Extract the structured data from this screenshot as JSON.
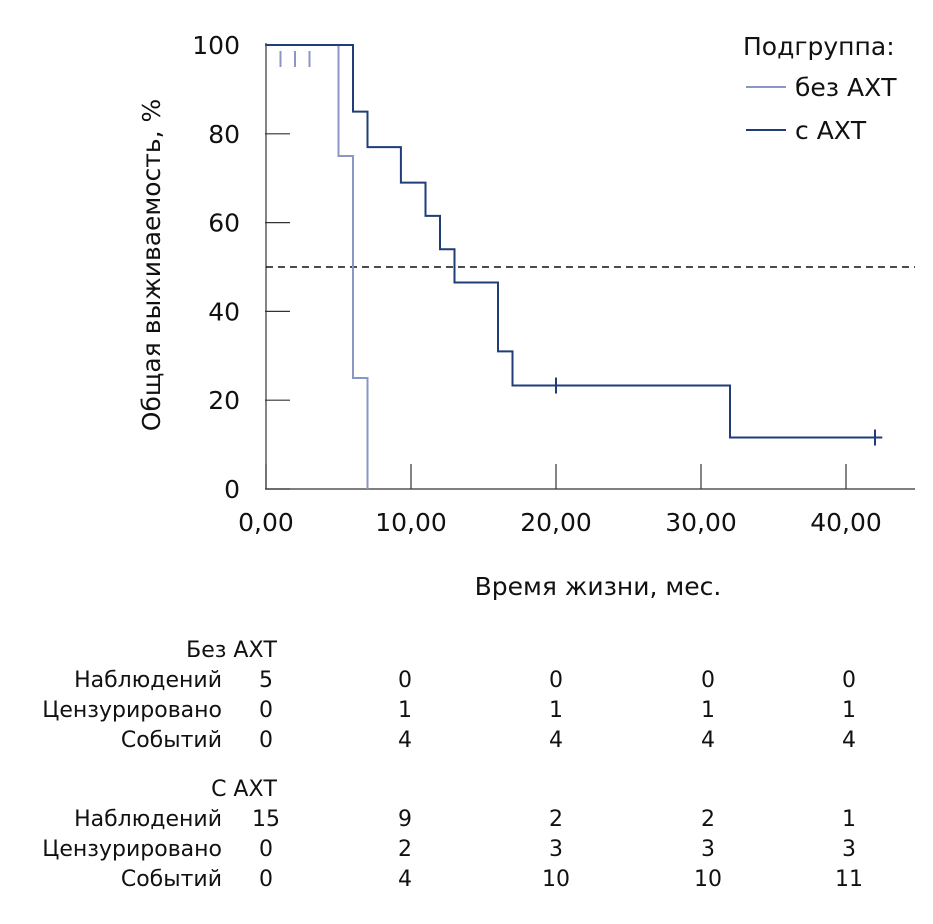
{
  "chart_data": {
    "type": "line",
    "xlabel": "Время жизни, мес.",
    "ylabel": "Общая выживаемость, %",
    "xlim": [
      0,
      45
    ],
    "ylim": [
      0,
      100
    ],
    "x_ticks": [
      0,
      10,
      20,
      30,
      40
    ],
    "x_tick_labels": [
      "0,00",
      "10,00",
      "20,00",
      "30,00",
      "40,00"
    ],
    "y_ticks": [
      0,
      20,
      40,
      60,
      80,
      100
    ],
    "y_tick_labels": [
      "0",
      "20",
      "40",
      "60",
      "80",
      "100"
    ],
    "reference_line": {
      "y": 50,
      "style": "dashed"
    },
    "legend": {
      "title": "Подгруппа:",
      "position": "top-right"
    },
    "series": [
      {
        "name": "без АХТ",
        "color": "#8a97c4",
        "steps": [
          [
            0,
            100
          ],
          [
            5,
            100
          ],
          [
            5,
            75
          ],
          [
            6,
            75
          ],
          [
            6,
            25
          ],
          [
            7,
            25
          ],
          [
            7,
            0
          ]
        ],
        "censor_x": [
          1,
          2,
          3
        ]
      },
      {
        "name": "с АХТ",
        "color": "#1f3d78",
        "steps": [
          [
            0,
            100
          ],
          [
            6,
            100
          ],
          [
            6,
            85
          ],
          [
            7,
            85
          ],
          [
            7,
            77
          ],
          [
            9.3,
            77
          ],
          [
            9.3,
            69
          ],
          [
            11,
            69
          ],
          [
            11,
            61.5
          ],
          [
            12,
            61.5
          ],
          [
            12,
            54
          ],
          [
            13,
            54
          ],
          [
            13,
            46.5
          ],
          [
            16,
            46.5
          ],
          [
            16,
            31
          ],
          [
            17,
            31
          ],
          [
            17,
            23.3
          ],
          [
            32,
            23.3
          ],
          [
            32,
            11.6
          ],
          [
            42.5,
            11.6
          ]
        ],
        "censor": [
          [
            20,
            23.3
          ],
          [
            42,
            11.6
          ]
        ]
      }
    ]
  },
  "risk_table": {
    "groups": [
      {
        "title": "Без АХТ",
        "rows": [
          {
            "label": "Наблюдений",
            "values": [
              "5",
              "0",
              "0",
              "0",
              "0"
            ]
          },
          {
            "label": "Цензурировано",
            "values": [
              "0",
              "1",
              "1",
              "1",
              "1"
            ]
          },
          {
            "label": "Событий",
            "values": [
              "0",
              "4",
              "4",
              "4",
              "4"
            ]
          }
        ]
      },
      {
        "title": "С АХТ",
        "rows": [
          {
            "label": "Наблюдений",
            "values": [
              "15",
              "9",
              "2",
              "2",
              "1"
            ]
          },
          {
            "label": "Цензурировано",
            "values": [
              "0",
              "2",
              "3",
              "3",
              "3"
            ]
          },
          {
            "label": "Событий",
            "values": [
              "0",
              "4",
              "10",
              "10",
              "11"
            ]
          }
        ]
      }
    ]
  }
}
